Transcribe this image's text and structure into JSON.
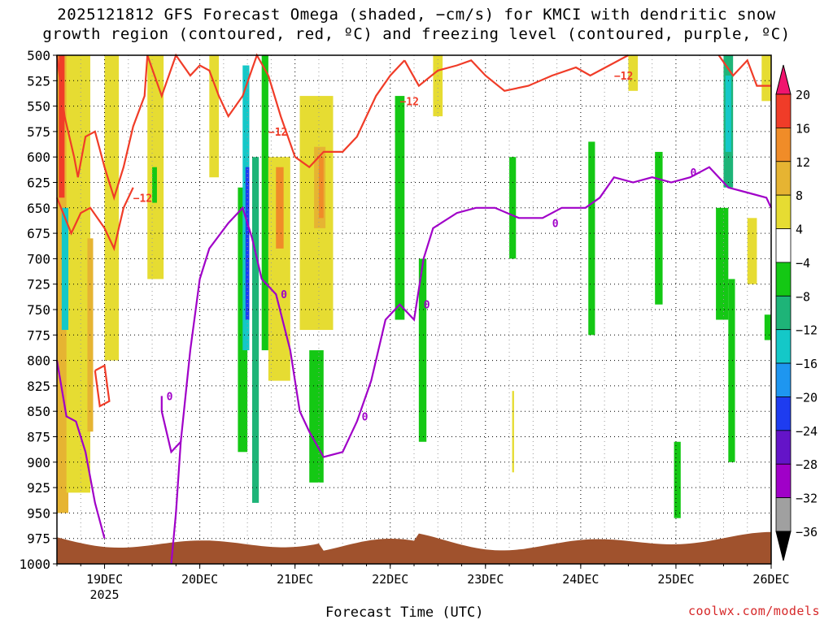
{
  "title_line1": "2025121812 GFS Forecast Omega (shaded, −cm/s) for KMCI with dendritic snow",
  "title_line2": "growth region (contoured, red, ºC) and freezing level (contoured, purple, ºC)",
  "credit": "coolwx.com/models",
  "chart_data": {
    "type": "heatmap",
    "title": "2025121812 GFS Forecast Omega (shaded, −cm/s) for KMCI with dendritic snow growth region (contoured, red, ºC) and freezing level (contoured, purple, ºC)",
    "xlabel": "Forecast Time (UTC)",
    "ylabel": "",
    "x_ticks": [
      "19DEC",
      "20DEC",
      "21DEC",
      "22DEC",
      "23DEC",
      "24DEC",
      "25DEC",
      "26DEC"
    ],
    "x_tick_days": [
      19,
      20,
      21,
      22,
      23,
      24,
      25,
      26
    ],
    "x_year_label": "2025",
    "xlim_days": [
      18.5,
      26.0
    ],
    "y_ticks": [
      500,
      525,
      550,
      575,
      600,
      625,
      650,
      675,
      700,
      725,
      750,
      775,
      800,
      825,
      850,
      875,
      900,
      925,
      950,
      975,
      1000
    ],
    "ylim_hpa": [
      1000,
      500
    ],
    "grid": true,
    "colorbar": {
      "levels": [
        20,
        16,
        12,
        8,
        4,
        -4,
        -8,
        -12,
        -16,
        -20,
        -24,
        -28,
        -32,
        -36
      ],
      "colors": [
        "#f0146e",
        "#f03c28",
        "#f08c28",
        "#e6b432",
        "#e6dc32",
        "#ffffff",
        "#14c814",
        "#1eb478",
        "#14c8c8",
        "#1e96f0",
        "#1e3cf0",
        "#6414c8",
        "#a000c8",
        "#a0a0a0",
        "#000000"
      ]
    },
    "shading": [
      {
        "x": [
          18.5,
          18.62
        ],
        "y": [
          500,
          950
        ],
        "value": 8
      },
      {
        "x": [
          18.52,
          18.58
        ],
        "y": [
          500,
          640
        ],
        "value": 16
      },
      {
        "x": [
          18.6,
          18.85
        ],
        "y": [
          500,
          930
        ],
        "value": 4
      },
      {
        "x": [
          18.82,
          18.88
        ],
        "y": [
          680,
          870
        ],
        "value": 8
      },
      {
        "x": [
          18.55,
          18.62
        ],
        "y": [
          650,
          770
        ],
        "value": -12
      },
      {
        "x": [
          19.0,
          19.15
        ],
        "y": [
          500,
          800
        ],
        "value": 4
      },
      {
        "x": [
          19.45,
          19.62
        ],
        "y": [
          500,
          720
        ],
        "value": 4
      },
      {
        "x": [
          19.5,
          19.55
        ],
        "y": [
          610,
          645
        ],
        "value": -4
      },
      {
        "x": [
          20.1,
          20.2
        ],
        "y": [
          500,
          620
        ],
        "value": 4
      },
      {
        "x": [
          20.4,
          20.5
        ],
        "y": [
          630,
          890
        ],
        "value": -4
      },
      {
        "x": [
          20.45,
          20.52
        ],
        "y": [
          510,
          790
        ],
        "value": -12
      },
      {
        "x": [
          20.48,
          20.52
        ],
        "y": [
          610,
          760
        ],
        "value": -20
      },
      {
        "x": [
          20.55,
          20.62
        ],
        "y": [
          600,
          940
        ],
        "value": -8
      },
      {
        "x": [
          20.65,
          20.72
        ],
        "y": [
          500,
          790
        ],
        "value": -4
      },
      {
        "x": [
          20.72,
          20.95
        ],
        "y": [
          600,
          820
        ],
        "value": 4
      },
      {
        "x": [
          20.8,
          20.88
        ],
        "y": [
          610,
          690
        ],
        "value": 12
      },
      {
        "x": [
          21.05,
          21.4
        ],
        "y": [
          540,
          770
        ],
        "value": 4
      },
      {
        "x": [
          21.2,
          21.32
        ],
        "y": [
          590,
          670
        ],
        "value": 8
      },
      {
        "x": [
          21.25,
          21.3
        ],
        "y": [
          600,
          660
        ],
        "value": 12
      },
      {
        "x": [
          21.15,
          21.3
        ],
        "y": [
          790,
          920
        ],
        "value": -4
      },
      {
        "x": [
          22.05,
          22.15
        ],
        "y": [
          540,
          760
        ],
        "value": -4
      },
      {
        "x": [
          22.3,
          22.38
        ],
        "y": [
          700,
          880
        ],
        "value": -4
      },
      {
        "x": [
          22.45,
          22.55
        ],
        "y": [
          500,
          560
        ],
        "value": 4
      },
      {
        "x": [
          23.25,
          23.32
        ],
        "y": [
          600,
          700
        ],
        "value": -4
      },
      {
        "x": [
          23.28,
          23.3
        ],
        "y": [
          830,
          910
        ],
        "value": 4
      },
      {
        "x": [
          24.08,
          24.15
        ],
        "y": [
          585,
          775
        ],
        "value": -4
      },
      {
        "x": [
          24.5,
          24.6
        ],
        "y": [
          500,
          535
        ],
        "value": 4
      },
      {
        "x": [
          24.78,
          24.86
        ],
        "y": [
          595,
          745
        ],
        "value": -4
      },
      {
        "x": [
          24.98,
          25.05
        ],
        "y": [
          880,
          955
        ],
        "value": -4
      },
      {
        "x": [
          25.42,
          25.55
        ],
        "y": [
          650,
          760
        ],
        "value": -4
      },
      {
        "x": [
          25.5,
          25.6
        ],
        "y": [
          500,
          630
        ],
        "value": -8
      },
      {
        "x": [
          25.52,
          25.58
        ],
        "y": [
          520,
          595
        ],
        "value": -12
      },
      {
        "x": [
          25.55,
          25.62
        ],
        "y": [
          720,
          900
        ],
        "value": -4
      },
      {
        "x": [
          25.75,
          25.85
        ],
        "y": [
          660,
          725
        ],
        "value": 4
      },
      {
        "x": [
          25.9,
          26.0
        ],
        "y": [
          500,
          545
        ],
        "value": 4
      },
      {
        "x": [
          25.93,
          26.0
        ],
        "y": [
          755,
          780
        ],
        "value": -4
      }
    ],
    "contours": [
      {
        "name": "-12",
        "color": "#f03c28",
        "label": "-12",
        "segments": [
          [
            [
              18.5,
              500
            ],
            [
              18.58,
              560
            ],
            [
              18.68,
              600
            ],
            [
              18.72,
              620
            ],
            [
              18.8,
              580
            ],
            [
              18.9,
              575
            ],
            [
              19.0,
              610
            ],
            [
              19.1,
              640
            ],
            [
              19.2,
              610
            ],
            [
              19.3,
              570
            ],
            [
              19.42,
              540
            ],
            [
              19.45,
              500
            ]
          ],
          [
            [
              19.45,
              500
            ],
            [
              19.6,
              540
            ],
            [
              19.75,
              500
            ],
            [
              19.9,
              520
            ],
            [
              20.0,
              510
            ],
            [
              20.1,
              515
            ],
            [
              20.2,
              540
            ],
            [
              20.3,
              560
            ],
            [
              20.45,
              540
            ],
            [
              20.6,
              500
            ],
            [
              20.72,
              520
            ]
          ],
          [
            [
              20.72,
              520
            ],
            [
              20.85,
              560
            ],
            [
              21.0,
              600
            ],
            [
              21.15,
              610
            ],
            [
              21.3,
              595
            ],
            [
              21.5,
              595
            ],
            [
              21.65,
              580
            ],
            [
              21.85,
              540
            ],
            [
              22.0,
              520
            ],
            [
              22.15,
              505
            ]
          ],
          [
            [
              22.15,
              505
            ],
            [
              22.3,
              530
            ],
            [
              22.5,
              515
            ],
            [
              22.7,
              510
            ],
            [
              22.85,
              505
            ],
            [
              23.0,
              520
            ],
            [
              23.2,
              535
            ],
            [
              23.45,
              530
            ],
            [
              23.7,
              520
            ],
            [
              23.95,
              512
            ],
            [
              24.1,
              520
            ],
            [
              24.3,
              510
            ],
            [
              24.5,
              500
            ]
          ],
          [
            [
              18.5,
              640
            ],
            [
              18.65,
              675
            ],
            [
              18.75,
              655
            ],
            [
              18.85,
              650
            ],
            [
              19.0,
              670
            ],
            [
              19.1,
              690
            ],
            [
              19.2,
              650
            ],
            [
              19.3,
              630
            ]
          ],
          [
            [
              18.9,
              810
            ],
            [
              18.95,
              845
            ],
            [
              19.05,
              840
            ],
            [
              19.0,
              805
            ],
            [
              18.9,
              810
            ]
          ],
          [
            [
              25.45,
              500
            ],
            [
              25.6,
              520
            ],
            [
              25.75,
              505
            ],
            [
              25.85,
              530
            ],
            [
              26.0,
              530
            ]
          ]
        ]
      },
      {
        "name": "0",
        "color": "#a000c8",
        "label": "0",
        "segments": [
          [
            [
              18.5,
              800
            ],
            [
              18.6,
              855
            ],
            [
              18.7,
              860
            ],
            [
              18.8,
              890
            ],
            [
              18.9,
              940
            ],
            [
              19.0,
              975
            ]
          ],
          [
            [
              19.7,
              1000
            ],
            [
              19.75,
              950
            ],
            [
              19.8,
              880
            ],
            [
              19.7,
              890
            ],
            [
              19.6,
              850
            ],
            [
              19.6,
              835
            ]
          ],
          [
            [
              19.8,
              880
            ],
            [
              19.9,
              790
            ],
            [
              20.0,
              720
            ],
            [
              20.1,
              690
            ],
            [
              20.3,
              665
            ],
            [
              20.45,
              650
            ],
            [
              20.55,
              680
            ],
            [
              20.65,
              720
            ],
            [
              20.8,
              735
            ],
            [
              20.95,
              790
            ],
            [
              21.05,
              850
            ],
            [
              21.15,
              870
            ],
            [
              21.3,
              895
            ],
            [
              21.5,
              890
            ],
            [
              21.65,
              860
            ]
          ],
          [
            [
              21.65,
              860
            ],
            [
              21.8,
              820
            ],
            [
              21.95,
              760
            ],
            [
              22.1,
              745
            ],
            [
              22.25,
              760
            ],
            [
              22.35,
              700
            ],
            [
              22.45,
              670
            ],
            [
              22.7,
              655
            ],
            [
              22.9,
              650
            ],
            [
              23.1,
              650
            ],
            [
              23.35,
              660
            ],
            [
              23.6,
              660
            ],
            [
              23.8,
              650
            ],
            [
              24.05,
              650
            ],
            [
              24.2,
              640
            ],
            [
              24.35,
              620
            ],
            [
              24.55,
              625
            ],
            [
              24.75,
              620
            ],
            [
              24.95,
              625
            ],
            [
              25.15,
              620
            ],
            [
              25.35,
              610
            ],
            [
              25.55,
              630
            ],
            [
              25.75,
              635
            ],
            [
              25.95,
              640
            ],
            [
              26.0,
              650
            ]
          ]
        ]
      }
    ],
    "terrain_color": "#a0522d"
  }
}
